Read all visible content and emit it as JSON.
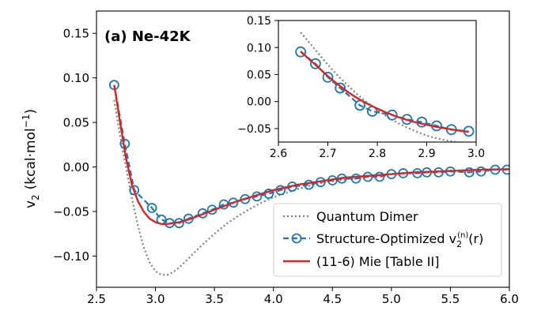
{
  "chart_data": [
    {
      "type": "line",
      "panel_label": "(a) Ne-42K",
      "ylabel": "v",
      "ylabel_sub": "2",
      "ylabel_units_prefix": "(kcal·mol",
      "ylabel_units_sup": "−1",
      "ylabel_units_suffix": ")",
      "xlim": [
        2.5,
        6.0
      ],
      "ylim": [
        -0.135,
        0.175
      ],
      "xticks": [
        2.5,
        3.0,
        3.5,
        4.0,
        4.5,
        5.0,
        5.5,
        6.0
      ],
      "xtick_labels": [
        "2.5",
        "3.0",
        "3.5",
        "4.0",
        "4.5",
        "5.0",
        "5.5",
        "6.0"
      ],
      "yticks": [
        0.15,
        0.1,
        0.05,
        0.0,
        -0.05,
        -0.1
      ],
      "ytick_labels": [
        "0.15",
        "0.10",
        "0.05",
        "0.00",
        "−0.05",
        "−0.10"
      ],
      "grid": false,
      "legend_position": "lower-right",
      "series": [
        {
          "name": "Quantum Dimer",
          "style": "dotted",
          "color": "#7f7f7f",
          "x": [
            2.65,
            2.7,
            2.75,
            2.8,
            2.85,
            2.9,
            2.95,
            3.0,
            3.05,
            3.1,
            3.15,
            3.2,
            3.3,
            3.4,
            3.5,
            3.6,
            3.7,
            3.8,
            3.9,
            4.0,
            4.2,
            4.4,
            4.6,
            4.8,
            5.0,
            5.5,
            6.0
          ],
          "y": [
            0.075,
            0.035,
            0.0,
            -0.035,
            -0.065,
            -0.09,
            -0.107,
            -0.117,
            -0.121,
            -0.121,
            -0.118,
            -0.113,
            -0.1,
            -0.087,
            -0.075,
            -0.064,
            -0.055,
            -0.047,
            -0.04,
            -0.034,
            -0.025,
            -0.018,
            -0.014,
            -0.011,
            -0.008,
            -0.004,
            -0.002
          ]
        },
        {
          "name": "Structure-Optimized v(r)",
          "legend_sub": "2",
          "legend_sup": "(n)",
          "style": "dashed-circles",
          "color": "#1f77b4",
          "x": [
            2.65,
            2.74,
            2.82,
            2.97,
            3.05,
            3.12,
            3.2,
            3.28,
            3.4,
            3.48,
            3.58,
            3.66,
            3.76,
            3.86,
            3.96,
            4.06,
            4.16,
            4.3,
            4.4,
            4.5,
            4.58,
            4.7,
            4.8,
            4.9,
            5.0,
            5.1,
            5.22,
            5.3,
            5.4,
            5.5,
            5.66,
            5.76,
            5.88,
            5.98
          ],
          "y": [
            0.092,
            0.026,
            -0.026,
            -0.046,
            -0.059,
            -0.063,
            -0.063,
            -0.058,
            -0.052,
            -0.048,
            -0.042,
            -0.04,
            -0.036,
            -0.033,
            -0.03,
            -0.026,
            -0.022,
            -0.02,
            -0.017,
            -0.015,
            -0.013,
            -0.013,
            -0.011,
            -0.011,
            -0.008,
            -0.007,
            -0.007,
            -0.006,
            -0.006,
            -0.005,
            -0.006,
            -0.005,
            -0.003,
            -0.003
          ]
        },
        {
          "name": "(11-6) Mie [Table II]",
          "style": "solid",
          "color": "#d62728",
          "x": [
            2.65,
            2.7,
            2.75,
            2.8,
            2.85,
            2.9,
            2.95,
            3.0,
            3.05,
            3.1,
            3.15,
            3.2,
            3.3,
            3.4,
            3.5,
            3.6,
            3.7,
            3.8,
            3.9,
            4.0,
            4.2,
            4.4,
            4.6,
            4.8,
            5.0,
            5.2,
            5.4,
            5.6,
            5.8,
            6.0
          ],
          "y": [
            0.092,
            0.05,
            0.01,
            -0.02,
            -0.038,
            -0.05,
            -0.058,
            -0.062,
            -0.064,
            -0.064,
            -0.063,
            -0.062,
            -0.058,
            -0.053,
            -0.048,
            -0.043,
            -0.038,
            -0.034,
            -0.03,
            -0.026,
            -0.02,
            -0.016,
            -0.012,
            -0.01,
            -0.008,
            -0.006,
            -0.005,
            -0.004,
            -0.003,
            -0.0025
          ]
        }
      ]
    },
    {
      "type": "line",
      "panel_label": "inset",
      "xlim": [
        2.6,
        3.0
      ],
      "ylim": [
        -0.075,
        0.15
      ],
      "xticks": [
        2.6,
        2.7,
        2.8,
        2.9,
        3.0
      ],
      "xtick_labels": [
        "2.6",
        "2.7",
        "2.8",
        "2.9",
        "3.0"
      ],
      "yticks": [
        0.15,
        0.1,
        0.05,
        0.0,
        -0.05
      ],
      "ytick_labels": [
        "0.15",
        "0.10",
        "0.05",
        "0.00",
        "−0.05"
      ],
      "series": [
        {
          "name": "Quantum Dimer",
          "style": "dotted",
          "color": "#7f7f7f",
          "x": [
            2.645,
            2.66,
            2.68,
            2.7,
            2.72,
            2.74,
            2.76,
            2.78,
            2.8,
            2.82,
            2.84,
            2.86,
            2.88,
            2.9,
            2.92,
            2.94,
            2.96,
            2.98
          ],
          "y": [
            0.128,
            0.112,
            0.09,
            0.068,
            0.048,
            0.03,
            0.013,
            -0.002,
            -0.016,
            -0.028,
            -0.039,
            -0.048,
            -0.056,
            -0.063,
            -0.068,
            -0.072,
            -0.075,
            -0.077
          ]
        },
        {
          "name": "Structure-Optimized v(r)",
          "style": "dashed-circles",
          "color": "#1f77b4",
          "x": [
            2.645,
            2.675,
            2.7,
            2.725,
            2.765,
            2.79,
            2.83,
            2.86,
            2.89,
            2.92,
            2.95,
            2.985
          ],
          "y": [
            0.092,
            0.07,
            0.045,
            0.025,
            -0.007,
            -0.018,
            -0.025,
            -0.033,
            -0.038,
            -0.045,
            -0.052,
            -0.055
          ]
        },
        {
          "name": "(11-6) Mie [Table II]",
          "style": "solid",
          "color": "#d62728",
          "x": [
            2.645,
            2.66,
            2.68,
            2.7,
            2.72,
            2.74,
            2.76,
            2.78,
            2.8,
            2.82,
            2.84,
            2.86,
            2.88,
            2.9,
            2.92,
            2.94,
            2.96,
            2.985
          ],
          "y": [
            0.093,
            0.08,
            0.064,
            0.047,
            0.032,
            0.018,
            0.006,
            -0.004,
            -0.013,
            -0.021,
            -0.028,
            -0.034,
            -0.039,
            -0.043,
            -0.047,
            -0.05,
            -0.053,
            -0.056
          ]
        }
      ]
    }
  ]
}
